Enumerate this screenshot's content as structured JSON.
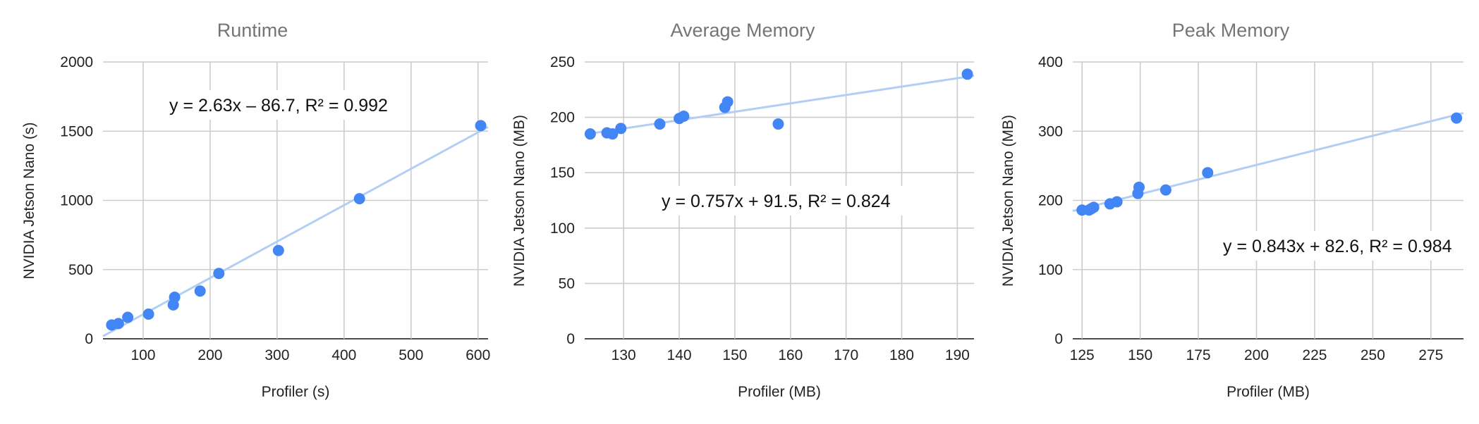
{
  "chart_data": [
    {
      "type": "scatter",
      "title": "Runtime",
      "xlabel": "Profiler (s)",
      "ylabel": "NVIDIA Jetson Nano (s)",
      "xlim": [
        40,
        615
      ],
      "ylim": [
        0,
        2000
      ],
      "xticks": [
        100,
        200,
        300,
        400,
        500,
        600
      ],
      "yticks": [
        0,
        500,
        1000,
        1500,
        2000
      ],
      "grid": true,
      "series": [
        {
          "x": [
            53,
            63,
            77,
            108,
            145,
            147,
            185,
            213,
            302,
            423,
            604
          ],
          "y": [
            100,
            110,
            155,
            178,
            245,
            300,
            345,
            472,
            638,
            1012,
            1540
          ]
        }
      ],
      "trendline": {
        "slope": 2.63,
        "intercept": -86.7,
        "label": "y = 2.63x – 86.7,  R² = 0.992"
      },
      "color": "#4285f4",
      "trend_color": "#b3cef5"
    },
    {
      "type": "scatter",
      "title": "Average Memory",
      "xlabel": "Profiler (MB)",
      "ylabel": "NVIDIA Jetson Nano (MB)",
      "xlim": [
        123,
        193
      ],
      "ylim": [
        0,
        250
      ],
      "xticks": [
        130,
        140,
        150,
        160,
        170,
        180,
        190
      ],
      "yticks": [
        0,
        50,
        100,
        150,
        200,
        250
      ],
      "grid": true,
      "series": [
        {
          "x": [
            124,
            127,
            128,
            129.5,
            136.5,
            140,
            140.8,
            148.2,
            148.7,
            157.8,
            191.8
          ],
          "y": [
            185,
            186,
            185,
            190,
            194,
            199,
            201,
            209,
            214,
            194,
            239
          ]
        }
      ],
      "trendline": {
        "slope": 0.757,
        "intercept": 91.5,
        "label": "y = 0.757x + 91.5,  R² = 0.824"
      },
      "color": "#4285f4",
      "trend_color": "#b3cef5"
    },
    {
      "type": "scatter",
      "title": "Peak Memory",
      "xlabel": "Profiler (MB)",
      "ylabel": "NVIDIA Jetson Nano (MB)",
      "xlim": [
        121,
        289
      ],
      "ylim": [
        0,
        400
      ],
      "xticks": [
        125,
        150,
        175,
        200,
        225,
        250,
        275
      ],
      "yticks": [
        0,
        100,
        200,
        300,
        400
      ],
      "grid": true,
      "series": [
        {
          "x": [
            125,
            128,
            129,
            130,
            137,
            140,
            149,
            149.5,
            161,
            179,
            286
          ],
          "y": [
            186,
            186,
            188,
            190,
            195,
            198,
            210,
            219,
            215,
            240,
            319
          ]
        }
      ],
      "trendline": {
        "slope": 0.843,
        "intercept": 82.6,
        "label": "y = 0.843x + 82.6,  R² = 0.984"
      },
      "color": "#4285f4",
      "trend_color": "#b3cef5"
    }
  ]
}
